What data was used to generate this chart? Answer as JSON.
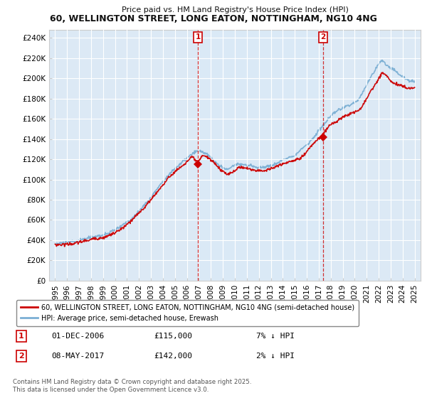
{
  "title": "60, WELLINGTON STREET, LONG EATON, NOTTINGHAM, NG10 4NG",
  "subtitle": "Price paid vs. HM Land Registry's House Price Index (HPI)",
  "ylim": [
    0,
    248000
  ],
  "background_color": "#dce9f5",
  "plot_bg": "#dce9f5",
  "highlight_bg": "#e8f2fb",
  "legend_label_red": "60, WELLINGTON STREET, LONG EATON, NOTTINGHAM, NG10 4NG (semi-detached house)",
  "legend_label_blue": "HPI: Average price, semi-detached house, Erewash",
  "annotation1_date": "01-DEC-2006",
  "annotation1_price": "£115,000",
  "annotation1_hpi": "7% ↓ HPI",
  "annotation2_date": "08-MAY-2017",
  "annotation2_price": "£142,000",
  "annotation2_hpi": "2% ↓ HPI",
  "copyright_text": "Contains HM Land Registry data © Crown copyright and database right 2025.\nThis data is licensed under the Open Government Licence v3.0.",
  "red_color": "#cc0000",
  "blue_color": "#7bafd4",
  "marker1_x": 2006.92,
  "marker1_y": 115000,
  "marker2_x": 2017.36,
  "marker2_y": 142000,
  "xlim_min": 1994.5,
  "xlim_max": 2025.5,
  "xtick_years": [
    1995,
    1996,
    1997,
    1998,
    1999,
    2000,
    2001,
    2002,
    2003,
    2004,
    2005,
    2006,
    2007,
    2008,
    2009,
    2010,
    2011,
    2012,
    2013,
    2014,
    2015,
    2016,
    2017,
    2018,
    2019,
    2020,
    2021,
    2022,
    2023,
    2024,
    2025
  ]
}
